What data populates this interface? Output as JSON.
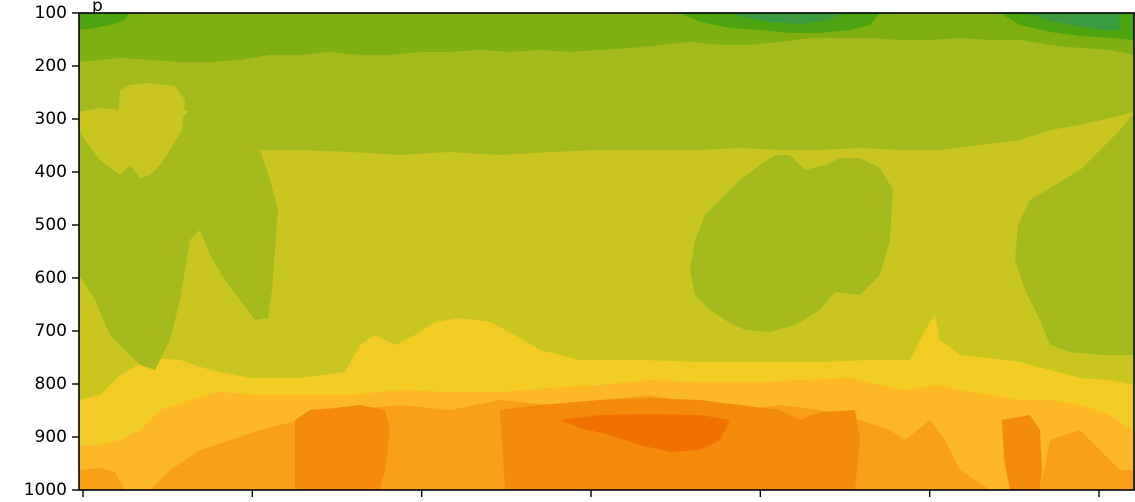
{
  "chart_data": {
    "type": "heatmap",
    "title": "",
    "title_fragment": "p_",
    "xlabel": "",
    "ylabel": "",
    "y_axis": {
      "inverted": true,
      "range": [
        100,
        1000
      ],
      "ticks": [
        100,
        200,
        300,
        400,
        500,
        600,
        700,
        800,
        900,
        1000
      ],
      "tick_labels": [
        "100",
        "200",
        "300",
        "400",
        "500",
        "600",
        "700",
        "800",
        "900",
        "1000"
      ]
    },
    "x_axis": {
      "tick_count": 7,
      "tick_labels": []
    },
    "colormap_levels": [
      "#f07000",
      "#f48a0a",
      "#f9a018",
      "#fdb828",
      "#f2cc24",
      "#c9c620",
      "#a4ba1c",
      "#7fb012",
      "#4ca510",
      "#3a9a40"
    ],
    "grid": false,
    "legend": "none"
  }
}
